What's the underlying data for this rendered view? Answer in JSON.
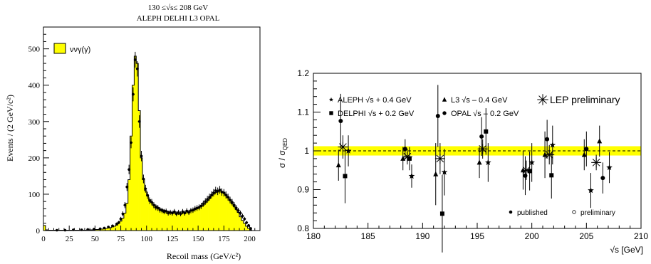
{
  "chart_data": [
    {
      "type": "bar",
      "title_line1": "130 ≤√s≤ 208 GeV",
      "title_line2": "ALEPH DELHI L3 OPAL",
      "xlabel": "Recoil mass (GeV/c²)",
      "ylabel": "Events / (2 GeV/c²)",
      "xlim": [
        0,
        210
      ],
      "ylim": [
        0,
        560
      ],
      "x_ticks": [
        "0",
        "25",
        "50",
        "75",
        "100",
        "125",
        "150",
        "175",
        "200"
      ],
      "y_ticks": [
        "0",
        "100",
        "200",
        "300",
        "400",
        "500"
      ],
      "legend_label": "ννγ(γ)",
      "fill_color": "#ffff00",
      "bin_width": 2,
      "bins_x": [
        0,
        2,
        4,
        6,
        8,
        10,
        12,
        14,
        16,
        18,
        20,
        22,
        24,
        26,
        28,
        30,
        32,
        34,
        36,
        38,
        40,
        42,
        44,
        46,
        48,
        50,
        52,
        54,
        56,
        58,
        60,
        62,
        64,
        66,
        68,
        70,
        72,
        74,
        76,
        78,
        80,
        82,
        84,
        86,
        88,
        90,
        92,
        94,
        96,
        98,
        100,
        102,
        104,
        106,
        108,
        110,
        112,
        114,
        116,
        118,
        120,
        122,
        124,
        126,
        128,
        130,
        132,
        134,
        136,
        138,
        140,
        142,
        144,
        146,
        148,
        150,
        152,
        154,
        156,
        158,
        160,
        162,
        164,
        166,
        168,
        170,
        172,
        174,
        176,
        178,
        180,
        182,
        184,
        186,
        188,
        190,
        192,
        194,
        196,
        198,
        200
      ],
      "mc_values": [
        14,
        2,
        1,
        1,
        1,
        1,
        1,
        1,
        1,
        1,
        1,
        1,
        1,
        1,
        1,
        1,
        1,
        1,
        1,
        1,
        1,
        1,
        2,
        2,
        2,
        3,
        3,
        4,
        4,
        5,
        6,
        7,
        8,
        10,
        12,
        15,
        20,
        26,
        34,
        48,
        75,
        140,
        260,
        400,
        480,
        460,
        330,
        200,
        140,
        110,
        95,
        85,
        78,
        72,
        68,
        64,
        60,
        58,
        56,
        54,
        52,
        50,
        50,
        50,
        49,
        48,
        48,
        50,
        50,
        52,
        52,
        54,
        56,
        58,
        60,
        62,
        66,
        70,
        76,
        82,
        88,
        95,
        100,
        105,
        108,
        110,
        108,
        104,
        98,
        90,
        82,
        74,
        66,
        58,
        50,
        38,
        28,
        20,
        12,
        6,
        2
      ],
      "data_points": [
        {
          "x": 13,
          "y": 1
        },
        {
          "x": 21,
          "y": 1
        },
        {
          "x": 29,
          "y": 2
        },
        {
          "x": 37,
          "y": 2
        },
        {
          "x": 43,
          "y": 3
        },
        {
          "x": 49,
          "y": 4
        },
        {
          "x": 55,
          "y": 5
        },
        {
          "x": 59,
          "y": 7
        },
        {
          "x": 63,
          "y": 10
        },
        {
          "x": 67,
          "y": 13
        },
        {
          "x": 71,
          "y": 18
        },
        {
          "x": 73,
          "y": 22
        },
        {
          "x": 75,
          "y": 32
        },
        {
          "x": 77,
          "y": 46
        },
        {
          "x": 79,
          "y": 70
        },
        {
          "x": 81,
          "y": 120
        },
        {
          "x": 83,
          "y": 168
        },
        {
          "x": 85,
          "y": 242
        },
        {
          "x": 87,
          "y": 375
        },
        {
          "x": 89,
          "y": 470
        },
        {
          "x": 91,
          "y": 445
        },
        {
          "x": 93,
          "y": 300
        },
        {
          "x": 95,
          "y": 205
        },
        {
          "x": 97,
          "y": 142
        },
        {
          "x": 99,
          "y": 115
        },
        {
          "x": 101,
          "y": 97
        },
        {
          "x": 103,
          "y": 82
        },
        {
          "x": 105,
          "y": 78
        },
        {
          "x": 107,
          "y": 70
        },
        {
          "x": 109,
          "y": 64
        },
        {
          "x": 111,
          "y": 62
        },
        {
          "x": 113,
          "y": 57
        },
        {
          "x": 115,
          "y": 55
        },
        {
          "x": 117,
          "y": 52
        },
        {
          "x": 119,
          "y": 53
        },
        {
          "x": 121,
          "y": 48
        },
        {
          "x": 123,
          "y": 50
        },
        {
          "x": 125,
          "y": 48
        },
        {
          "x": 127,
          "y": 52
        },
        {
          "x": 129,
          "y": 46
        },
        {
          "x": 131,
          "y": 50
        },
        {
          "x": 133,
          "y": 46
        },
        {
          "x": 135,
          "y": 52
        },
        {
          "x": 137,
          "y": 48
        },
        {
          "x": 139,
          "y": 54
        },
        {
          "x": 141,
          "y": 50
        },
        {
          "x": 143,
          "y": 55
        },
        {
          "x": 145,
          "y": 56
        },
        {
          "x": 147,
          "y": 60
        },
        {
          "x": 149,
          "y": 62
        },
        {
          "x": 151,
          "y": 64
        },
        {
          "x": 153,
          "y": 68
        },
        {
          "x": 155,
          "y": 74
        },
        {
          "x": 157,
          "y": 80
        },
        {
          "x": 159,
          "y": 86
        },
        {
          "x": 161,
          "y": 92
        },
        {
          "x": 163,
          "y": 98
        },
        {
          "x": 165,
          "y": 104
        },
        {
          "x": 167,
          "y": 110
        },
        {
          "x": 169,
          "y": 108
        },
        {
          "x": 171,
          "y": 112
        },
        {
          "x": 173,
          "y": 106
        },
        {
          "x": 175,
          "y": 104
        },
        {
          "x": 177,
          "y": 98
        },
        {
          "x": 179,
          "y": 92
        },
        {
          "x": 181,
          "y": 84
        },
        {
          "x": 183,
          "y": 78
        },
        {
          "x": 185,
          "y": 70
        },
        {
          "x": 187,
          "y": 62
        },
        {
          "x": 189,
          "y": 55
        },
        {
          "x": 191,
          "y": 48
        },
        {
          "x": 193,
          "y": 40
        },
        {
          "x": 195,
          "y": 32
        },
        {
          "x": 197,
          "y": 22
        },
        {
          "x": 199,
          "y": 14
        },
        {
          "x": 201,
          "y": 6
        }
      ]
    },
    {
      "type": "scatter",
      "xlabel": "√s [GeV]",
      "ylabel": "σ / σ",
      "ylabel_sub": "QED",
      "xlim": [
        180,
        210
      ],
      "ylim": [
        0.8,
        1.2
      ],
      "x_ticks": [
        "180",
        "185",
        "190",
        "195",
        "200",
        "205",
        "210"
      ],
      "y_ticks": [
        "0.8",
        "0.9",
        "1",
        "1.1",
        "1.2"
      ],
      "band": {
        "center": 1.0,
        "low": 0.988,
        "high": 1.012,
        "color": "#ffff00"
      },
      "legend": {
        "aleph": "ALEPH √s + 0.4 GeV",
        "delphi": "DELPHI √s + 0.2 GeV",
        "l3": "L3 √s – 0.4 GeV",
        "opal": "OPAL √s – 0.2 GeV",
        "lep": "LEP preliminary",
        "published": "published",
        "preliminary": "preliminary"
      },
      "series": [
        {
          "name": "ALEPH √s + 0.4 GeV",
          "marker": "star",
          "points": [
            {
              "x": 183.2,
              "y": 1.0,
              "err": 0.04
            },
            {
              "x": 189.0,
              "y": 0.935,
              "err": 0.03
            },
            {
              "x": 192.0,
              "y": 0.945,
              "err": 0.06
            },
            {
              "x": 196.0,
              "y": 0.97,
              "err": 0.05
            },
            {
              "x": 200.0,
              "y": 0.97,
              "err": 0.05
            },
            {
              "x": 201.9,
              "y": 1.015,
              "err": 0.05
            },
            {
              "x": 205.4,
              "y": 0.898,
              "err": 0.045
            },
            {
              "x": 207.1,
              "y": 0.957,
              "err": 0.04
            }
          ]
        },
        {
          "name": "DELPHI √s + 0.2 GeV",
          "marker": "square",
          "points": [
            {
              "x": 182.9,
              "y": 0.935,
              "err": 0.07
            },
            {
              "x": 188.8,
              "y": 0.98,
              "err": 0.03
            },
            {
              "x": 191.8,
              "y": 0.838,
              "err": 0.1
            },
            {
              "x": 195.8,
              "y": 1.05,
              "err": 0.06
            },
            {
              "x": 199.8,
              "y": 0.948,
              "err": 0.05
            },
            {
              "x": 201.8,
              "y": 0.937,
              "err": 0.06
            }
          ]
        },
        {
          "name": "L3 √s – 0.4 GeV",
          "marker": "triangle",
          "points": [
            {
              "x": 182.3,
              "y": 0.963,
              "err": 0.04
            },
            {
              "x": 188.2,
              "y": 0.98,
              "err": 0.03
            },
            {
              "x": 191.2,
              "y": 0.94,
              "err": 0.08
            },
            {
              "x": 195.2,
              "y": 0.97,
              "err": 0.04
            },
            {
              "x": 199.2,
              "y": 0.95,
              "err": 0.05
            },
            {
              "x": 201.2,
              "y": 0.99,
              "err": 0.06
            },
            {
              "x": 204.8,
              "y": 0.99,
              "err": 0.04
            },
            {
              "x": 206.2,
              "y": 1.025,
              "err": 0.04
            }
          ]
        },
        {
          "name": "OPAL √s – 0.2 GeV",
          "marker": "circle",
          "points": [
            {
              "x": 182.5,
              "y": 1.077,
              "err": 0.07
            },
            {
              "x": 188.4,
              "y": 1.005,
              "err": 0.025
            },
            {
              "x": 191.4,
              "y": 1.09,
              "err": 0.08
            },
            {
              "x": 195.4,
              "y": 1.037,
              "err": 0.05
            },
            {
              "x": 199.4,
              "y": 0.936,
              "err": 0.05
            },
            {
              "x": 201.4,
              "y": 1.03,
              "err": 0.05
            },
            {
              "x": 205.0,
              "y": 1.005,
              "err": 0.045
            },
            {
              "x": 206.5,
              "y": 0.93,
              "err": 0.04
            }
          ]
        },
        {
          "name": "LEP preliminary",
          "marker": "asterisk",
          "points": [
            {
              "x": 182.7,
              "y": 1.01,
              "err": 0.03
            },
            {
              "x": 188.6,
              "y": 0.985,
              "err": 0.02
            },
            {
              "x": 191.6,
              "y": 0.98,
              "err": 0.04
            },
            {
              "x": 195.5,
              "y": 1.005,
              "err": 0.025
            },
            {
              "x": 199.5,
              "y": 0.95,
              "err": 0.025
            },
            {
              "x": 201.6,
              "y": 0.99,
              "err": 0.025
            },
            {
              "x": 205.9,
              "y": 0.97,
              "err": 0.02
            }
          ]
        }
      ]
    }
  ]
}
